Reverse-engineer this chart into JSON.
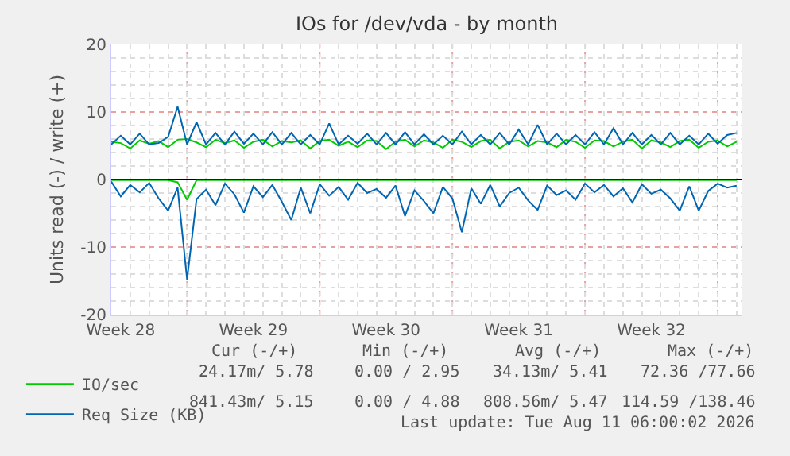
{
  "chart_data": {
    "type": "line",
    "title": "IOs for /dev/vda - by month",
    "ylabel": "Units read (-) / write (+)",
    "categories": [
      null,
      "Week 28",
      null,
      null,
      null,
      null,
      null,
      null,
      null,
      null,
      null,
      null,
      null,
      null,
      null,
      "Week 29",
      null,
      null,
      null,
      null,
      null,
      null,
      null,
      null,
      null,
      null,
      null,
      null,
      null,
      "Week 30",
      null,
      null,
      null,
      null,
      null,
      null,
      null,
      null,
      null,
      null,
      null,
      null,
      null,
      "Week 31",
      null,
      null,
      null,
      null,
      null,
      null,
      null,
      null,
      null,
      null,
      null,
      null,
      null,
      "Week 32",
      null,
      null,
      null,
      null,
      null,
      null,
      null,
      null,
      null
    ],
    "ylim": [
      -20,
      20
    ],
    "yticks": [
      -20,
      -10,
      0,
      10,
      20
    ],
    "grid": true,
    "legend": "bottom left",
    "series": [
      {
        "name": "IO/sec",
        "color": "#00cc00",
        "values": [
          5.6,
          5.4,
          4.6,
          5.8,
          5.3,
          5.7,
          4.8,
          5.9,
          6.0,
          5.5,
          4.8,
          5.9,
          5.4,
          5.8,
          4.7,
          5.6,
          5.9,
          4.9,
          5.7,
          5.5,
          5.8,
          4.6,
          5.7,
          5.9,
          5.0,
          5.6,
          4.8,
          5.8,
          5.7,
          4.5,
          5.6,
          5.9,
          4.9,
          5.8,
          5.5,
          4.7,
          5.9,
          5.6,
          4.8,
          5.7,
          5.9,
          4.6,
          5.6,
          5.8,
          4.9,
          5.7,
          5.5,
          4.8,
          5.9,
          5.6,
          4.7,
          5.8,
          5.7,
          4.9,
          5.6,
          5.9,
          4.6,
          5.8,
          5.5,
          4.8,
          5.7,
          5.9,
          4.7,
          5.6,
          5.8,
          4.9,
          5.6
        ]
      },
      {
        "name": "Req Size (KB)",
        "color": "#0066b3",
        "values": [
          5.2,
          6.5,
          5.2,
          6.8,
          5.2,
          5.4,
          6.3,
          10.8,
          5.2,
          8.5,
          5.2,
          6.9,
          5.2,
          7.1,
          5.3,
          6.8,
          5.2,
          7.0,
          5.2,
          6.9,
          5.2,
          6.6,
          5.2,
          8.3,
          5.2,
          6.5,
          5.3,
          6.8,
          5.2,
          6.9,
          5.2,
          7.0,
          5.2,
          6.7,
          5.2,
          6.5,
          5.2,
          7.1,
          5.2,
          6.6,
          5.2,
          6.9,
          5.2,
          7.4,
          5.2,
          8.1,
          5.2,
          6.8,
          5.2,
          6.6,
          5.2,
          7.0,
          5.2,
          7.6,
          5.2,
          6.9,
          5.2,
          6.6,
          5.2,
          6.9,
          5.2,
          6.5,
          5.2,
          6.8,
          5.3,
          6.6,
          6.9
        ]
      },
      {
        "color": "#00cc00",
        "values": [
          -0.1,
          -0.1,
          -0.1,
          -0.1,
          -0.1,
          -0.1,
          -0.1,
          -0.4,
          -3.0,
          -0.1,
          -0.1,
          -0.1,
          -0.1,
          -0.1,
          -0.1,
          -0.1,
          -0.1,
          -0.1,
          -0.1,
          -0.1,
          -0.1,
          -0.1,
          -0.1,
          -0.1,
          -0.1,
          -0.1,
          -0.1,
          -0.1,
          -0.1,
          -0.1,
          -0.1,
          -0.1,
          -0.1,
          -0.1,
          -0.1,
          -0.1,
          -0.1,
          -0.1,
          -0.1,
          -0.1,
          -0.1,
          -0.1,
          -0.1,
          -0.1,
          -0.1,
          -0.1,
          -0.1,
          -0.1,
          -0.1,
          -0.1,
          -0.1,
          -0.1,
          -0.1,
          -0.1,
          -0.1,
          -0.1,
          -0.1,
          -0.1,
          -0.1,
          -0.1,
          -0.1,
          -0.1,
          -0.1,
          -0.1,
          -0.1,
          -0.1,
          -0.1
        ]
      },
      {
        "color": "#0066b3",
        "values": [
          -0.3,
          -2.5,
          -0.8,
          -1.9,
          -0.5,
          -2.8,
          -4.6,
          -1.2,
          -14.8,
          -2.9,
          -1.5,
          -3.8,
          -0.6,
          -2.2,
          -4.9,
          -1.0,
          -2.6,
          -0.8,
          -3.3,
          -6.0,
          -1.2,
          -5.0,
          -0.7,
          -2.4,
          -1.1,
          -3.0,
          -0.5,
          -2.0,
          -1.4,
          -2.7,
          -0.9,
          -5.4,
          -1.6,
          -3.2,
          -5.0,
          -1.1,
          -2.8,
          -7.8,
          -1.3,
          -3.6,
          -0.8,
          -4.0,
          -2.0,
          -1.2,
          -3.1,
          -4.5,
          -0.9,
          -2.3,
          -1.6,
          -3.0,
          -0.6,
          -1.9,
          -0.8,
          -2.5,
          -1.3,
          -3.4,
          -0.7,
          -2.1,
          -1.5,
          -2.8,
          -4.6,
          -1.0,
          -4.6,
          -1.7,
          -0.6,
          -1.2,
          -0.9
        ]
      }
    ],
    "annotations": [
      "Cur (-/+)",
      "Min (-/+)",
      "Avg (-/+)",
      "Max (-/+)",
      "24.17m/ 5.78",
      "0.00 / 2.95",
      "34.13m/ 5.41",
      "72.36 /77.66",
      "841.43m/ 5.15",
      "0.00 / 4.88",
      "808.56m/ 5.47",
      "114.59 /138.46",
      "Last update: Tue Aug 11 06:00:02 2026"
    ]
  }
}
